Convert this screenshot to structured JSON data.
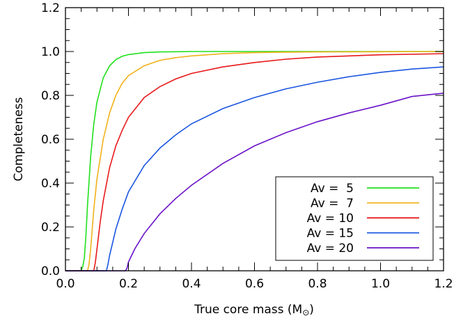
{
  "chart_data": {
    "type": "line",
    "xlabel": "True core mass (M",
    "xlabel_symbol": "⊙",
    "xlabel_close": ")",
    "ylabel": "Completeness",
    "xlim": [
      0.0,
      1.2
    ],
    "ylim": [
      0.0,
      1.2
    ],
    "xticks": [
      0.0,
      0.2,
      0.4,
      0.6,
      0.8,
      1.0,
      1.2
    ],
    "yticks": [
      0.0,
      0.2,
      0.4,
      0.6,
      0.8,
      1.0,
      1.2
    ],
    "xtick_labels": [
      "0.0",
      "0.2",
      "0.4",
      "0.6",
      "0.8",
      "1.0",
      "1.2"
    ],
    "ytick_labels": [
      "0.0",
      "0.2",
      "0.4",
      "0.6",
      "0.8",
      "1.0",
      "1.2"
    ],
    "grid": false,
    "legend_position": "bottom-right",
    "series": [
      {
        "name": "Av =  5",
        "color": "#22e01c",
        "x": [
          0.0,
          0.05,
          0.055,
          0.06,
          0.065,
          0.07,
          0.08,
          0.09,
          0.1,
          0.12,
          0.14,
          0.16,
          0.18,
          0.2,
          0.25,
          0.3,
          0.4,
          0.5,
          0.6,
          0.8,
          1.0,
          1.2
        ],
        "y": [
          0.0,
          0.0,
          0.02,
          0.06,
          0.16,
          0.3,
          0.52,
          0.67,
          0.77,
          0.88,
          0.935,
          0.963,
          0.978,
          0.986,
          0.995,
          0.998,
          1.0,
          1.0,
          1.0,
          1.0,
          1.0,
          1.0
        ]
      },
      {
        "name": "Av =  7",
        "color": "#f0b21a",
        "x": [
          0.0,
          0.07,
          0.075,
          0.08,
          0.09,
          0.1,
          0.12,
          0.14,
          0.16,
          0.18,
          0.2,
          0.25,
          0.3,
          0.35,
          0.4,
          0.5,
          0.6,
          0.7,
          0.8,
          1.0,
          1.2
        ],
        "y": [
          0.0,
          0.0,
          0.03,
          0.1,
          0.28,
          0.42,
          0.6,
          0.72,
          0.8,
          0.855,
          0.89,
          0.935,
          0.96,
          0.972,
          0.98,
          0.99,
          0.995,
          0.997,
          0.998,
          0.999,
          1.0
        ]
      },
      {
        "name": "Av = 10",
        "color": "#e8191b",
        "x": [
          0.0,
          0.09,
          0.095,
          0.1,
          0.11,
          0.12,
          0.14,
          0.16,
          0.18,
          0.2,
          0.25,
          0.3,
          0.35,
          0.4,
          0.5,
          0.6,
          0.7,
          0.8,
          1.0,
          1.2
        ],
        "y": [
          0.0,
          0.0,
          0.04,
          0.1,
          0.22,
          0.32,
          0.47,
          0.57,
          0.64,
          0.7,
          0.79,
          0.84,
          0.875,
          0.9,
          0.93,
          0.95,
          0.965,
          0.975,
          0.985,
          0.99
        ]
      },
      {
        "name": "Av = 15",
        "color": "#1a56e0",
        "x": [
          0.0,
          0.13,
          0.135,
          0.14,
          0.15,
          0.16,
          0.18,
          0.2,
          0.25,
          0.3,
          0.35,
          0.4,
          0.5,
          0.6,
          0.7,
          0.8,
          0.9,
          1.0,
          1.1,
          1.2
        ],
        "y": [
          0.0,
          0.0,
          0.03,
          0.07,
          0.13,
          0.19,
          0.28,
          0.36,
          0.48,
          0.56,
          0.62,
          0.67,
          0.74,
          0.79,
          0.83,
          0.86,
          0.885,
          0.905,
          0.92,
          0.93
        ]
      },
      {
        "name": "Av = 20",
        "color": "#6a12c8",
        "x": [
          0.0,
          0.19,
          0.195,
          0.2,
          0.22,
          0.25,
          0.3,
          0.35,
          0.4,
          0.5,
          0.6,
          0.7,
          0.8,
          0.9,
          1.0,
          1.1,
          1.2
        ],
        "y": [
          0.0,
          0.0,
          0.01,
          0.04,
          0.1,
          0.17,
          0.26,
          0.33,
          0.39,
          0.49,
          0.57,
          0.63,
          0.68,
          0.72,
          0.755,
          0.795,
          0.81
        ]
      }
    ]
  }
}
